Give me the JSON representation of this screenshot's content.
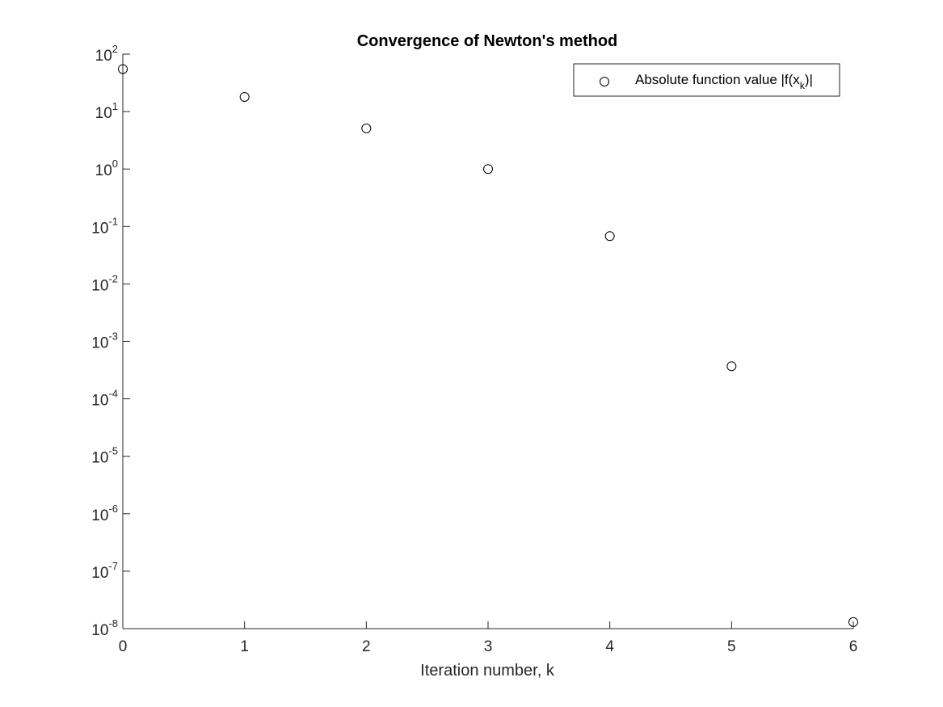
{
  "chart_data": {
    "type": "scatter",
    "title": "Convergence of Newton's method",
    "xlabel": "Iteration number, k",
    "ylabel": "",
    "xlim": [
      0,
      6
    ],
    "ylim": [
      1e-08,
      100
    ],
    "yscale": "log",
    "grid": false,
    "legend_placement": "top-right",
    "x_ticks": [
      "0",
      "1",
      "2",
      "3",
      "4",
      "5",
      "6"
    ],
    "y_ticks": [
      {
        "base": "10",
        "exp": "2",
        "value": 100
      },
      {
        "base": "10",
        "exp": "1",
        "value": 10
      },
      {
        "base": "10",
        "exp": "0",
        "value": 1
      },
      {
        "base": "10",
        "exp": "-1",
        "value": 0.1
      },
      {
        "base": "10",
        "exp": "-2",
        "value": 0.01
      },
      {
        "base": "10",
        "exp": "-3",
        "value": 0.001
      },
      {
        "base": "10",
        "exp": "-4",
        "value": 0.0001
      },
      {
        "base": "10",
        "exp": "-5",
        "value": 1e-05
      },
      {
        "base": "10",
        "exp": "-6",
        "value": 1e-06
      },
      {
        "base": "10",
        "exp": "-7",
        "value": 1e-07
      },
      {
        "base": "10",
        "exp": "-8",
        "value": 1e-08
      }
    ],
    "series": [
      {
        "name": "Absolute function value |f(x_k)|",
        "marker": "circle",
        "color": "#000000",
        "x": [
          0,
          1,
          2,
          3,
          4,
          5,
          6
        ],
        "y": [
          55,
          18,
          5.1,
          1.0,
          0.068,
          0.00037,
          1.3e-08
        ]
      }
    ],
    "legend": {
      "prefix": "Absolute function value |f(x",
      "subscript": "k",
      "suffix": ")|"
    }
  }
}
